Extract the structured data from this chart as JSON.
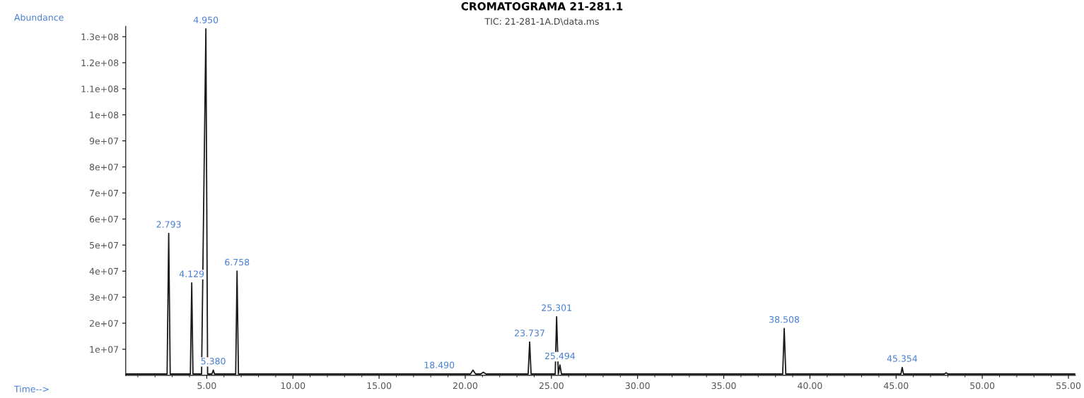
{
  "chart_data": {
    "type": "line",
    "title": "CROMATOGRAMA 21-281.1",
    "subtitle": "TIC: 21-281-1A.D\\data.ms",
    "xlabel": "Time-->",
    "ylabel": "Abundance",
    "series": [
      {
        "color": "#1a1a1a",
        "x": [
          0.3,
          2.7,
          2.793,
          2.88,
          4.05,
          4.129,
          4.2,
          4.7,
          4.95,
          5.05,
          5.3,
          5.38,
          5.45,
          6.68,
          6.758,
          6.84,
          20.3,
          20.45,
          20.6,
          20.9,
          21.05,
          21.2,
          23.65,
          23.737,
          23.82,
          25.22,
          25.301,
          25.4,
          25.494,
          25.58,
          38.42,
          38.508,
          38.6,
          45.28,
          45.354,
          45.43,
          47.8,
          47.9,
          48.0,
          55.4
        ],
        "values": [
          500000,
          500000,
          54500000,
          500000,
          500000,
          35500000,
          500000,
          500000,
          133000000,
          500000,
          500000,
          2000000,
          500000,
          500000,
          40000000,
          500000,
          500000,
          2000000,
          500000,
          500000,
          1200000,
          500000,
          500000,
          12800000,
          500000,
          500000,
          22500000,
          500000,
          4000000,
          500000,
          500000,
          18000000,
          500000,
          500000,
          3000000,
          500000,
          500000,
          1000000,
          500000,
          500000
        ]
      }
    ],
    "xlim": [
      0.3,
      55.4
    ],
    "ylim": [
      0,
      134000000
    ],
    "xticks": [
      {
        "value": 5,
        "label": "5.00"
      },
      {
        "value": 10,
        "label": "10.00"
      },
      {
        "value": 15,
        "label": "15.00"
      },
      {
        "value": 20,
        "label": "20.00"
      },
      {
        "value": 25,
        "label": "25.00"
      },
      {
        "value": 30,
        "label": "30.00"
      },
      {
        "value": 35,
        "label": "35.00"
      },
      {
        "value": 40,
        "label": "40.00"
      },
      {
        "value": 45,
        "label": "45.00"
      },
      {
        "value": 50,
        "label": "50.00"
      },
      {
        "value": 55,
        "label": "55.00"
      }
    ],
    "yticks": [
      {
        "value": 10000000,
        "label": "1e+07"
      },
      {
        "value": 20000000,
        "label": "2e+07"
      },
      {
        "value": 30000000,
        "label": "3e+07"
      },
      {
        "value": 40000000,
        "label": "4e+07"
      },
      {
        "value": 50000000,
        "label": "5e+07"
      },
      {
        "value": 60000000,
        "label": "6e+07"
      },
      {
        "value": 70000000,
        "label": "7e+07"
      },
      {
        "value": 80000000,
        "label": "8e+07"
      },
      {
        "value": 90000000,
        "label": "9e+07"
      },
      {
        "value": 100000000,
        "label": "1e+08"
      },
      {
        "value": 110000000,
        "label": "1.1e+08"
      },
      {
        "value": 120000000,
        "label": "1.2e+08"
      },
      {
        "value": 130000000,
        "label": "1.3e+08"
      }
    ],
    "annotations": [
      {
        "text": "2.793",
        "x": 2.793,
        "y": 54500000
      },
      {
        "text": "4.129",
        "x": 4.129,
        "y": 35500000
      },
      {
        "text": "4.950",
        "x": 4.95,
        "y": 133000000
      },
      {
        "text": "6.758",
        "x": 6.758,
        "y": 40000000
      },
      {
        "text": "5.380",
        "x": 5.38,
        "y": 2000000
      },
      {
        "text": "18.490",
        "x": 18.49,
        "y": 500000
      },
      {
        "text": "23.737",
        "x": 23.737,
        "y": 12800000
      },
      {
        "text": "25.301",
        "x": 25.301,
        "y": 22500000
      },
      {
        "text": "25.494",
        "x": 25.494,
        "y": 4000000
      },
      {
        "text": "38.508",
        "x": 38.508,
        "y": 18000000
      },
      {
        "text": "45.354",
        "x": 45.354,
        "y": 3000000
      }
    ],
    "grid": false,
    "marker": "none",
    "line_style": "solid"
  }
}
